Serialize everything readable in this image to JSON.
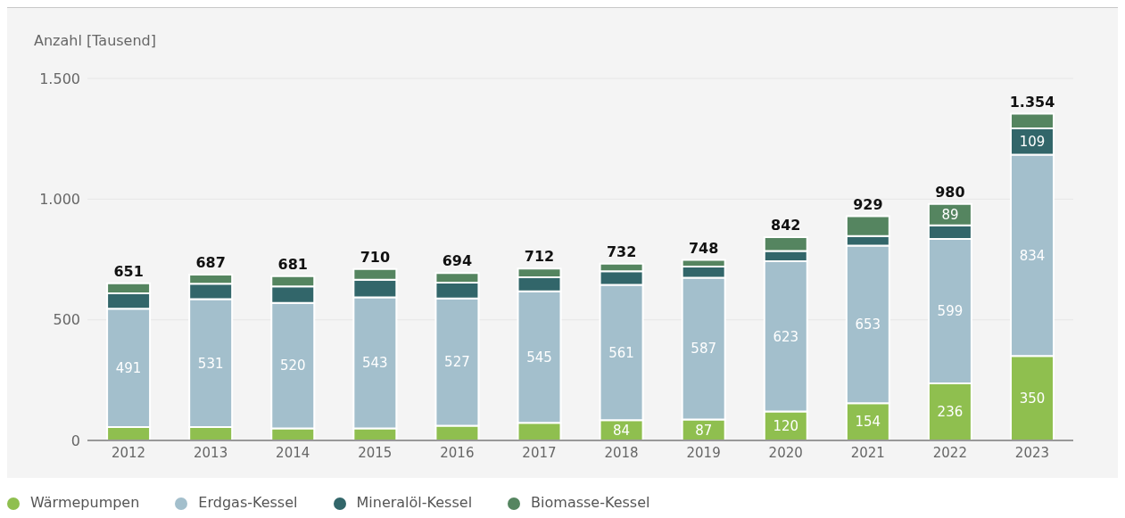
{
  "chart_data": {
    "type": "bar",
    "ylabel": "Anzahl [Tausend]",
    "categories": [
      "2012",
      "2013",
      "2014",
      "2015",
      "2016",
      "2017",
      "2018",
      "2019",
      "2020",
      "2021",
      "2022",
      "2023"
    ],
    "series": [
      {
        "name": "Wärmepumpen",
        "color": "#8fbf4f",
        "values": [
          55,
          55,
          50,
          50,
          61,
          73,
          84,
          87,
          120,
          154,
          236,
          350
        ],
        "value_labels": [
          null,
          null,
          null,
          null,
          null,
          null,
          "84",
          "87",
          "120",
          "154",
          "236",
          "350"
        ]
      },
      {
        "name": "Erdgas-Kessel",
        "color": "#a3bfcc",
        "values": [
          491,
          531,
          520,
          543,
          527,
          545,
          561,
          587,
          623,
          653,
          599,
          834
        ],
        "value_labels": [
          "491",
          "531",
          "520",
          "543",
          "527",
          "545",
          "561",
          "587",
          "623",
          "653",
          "599",
          "834"
        ]
      },
      {
        "name": "Mineralöl-Kessel",
        "color": "#32666a",
        "values": [
          64,
          63,
          68,
          73,
          66,
          58,
          56,
          46,
          42,
          40,
          56,
          109
        ],
        "value_labels": [
          null,
          null,
          null,
          null,
          null,
          null,
          null,
          null,
          null,
          null,
          null,
          "109"
        ]
      },
      {
        "name": "Biomasse-Kessel",
        "color": "#558560",
        "values": [
          41,
          38,
          43,
          44,
          40,
          36,
          31,
          28,
          57,
          82,
          89,
          61
        ],
        "value_labels": [
          null,
          null,
          null,
          null,
          null,
          null,
          null,
          null,
          null,
          null,
          "89",
          null
        ]
      }
    ],
    "stacked": true,
    "totals": [
      "651",
      "687",
      "681",
      "710",
      "694",
      "712",
      "732",
      "748",
      "842",
      "929",
      "980",
      "1.354"
    ],
    "ylim": [
      0,
      1500
    ],
    "yticks": [
      0,
      500,
      {
        "value": 1000,
        "label": "1.000"
      },
      {
        "value": 1500,
        "label": "1.500"
      }
    ],
    "grid": "y",
    "legend": "bottom left"
  }
}
